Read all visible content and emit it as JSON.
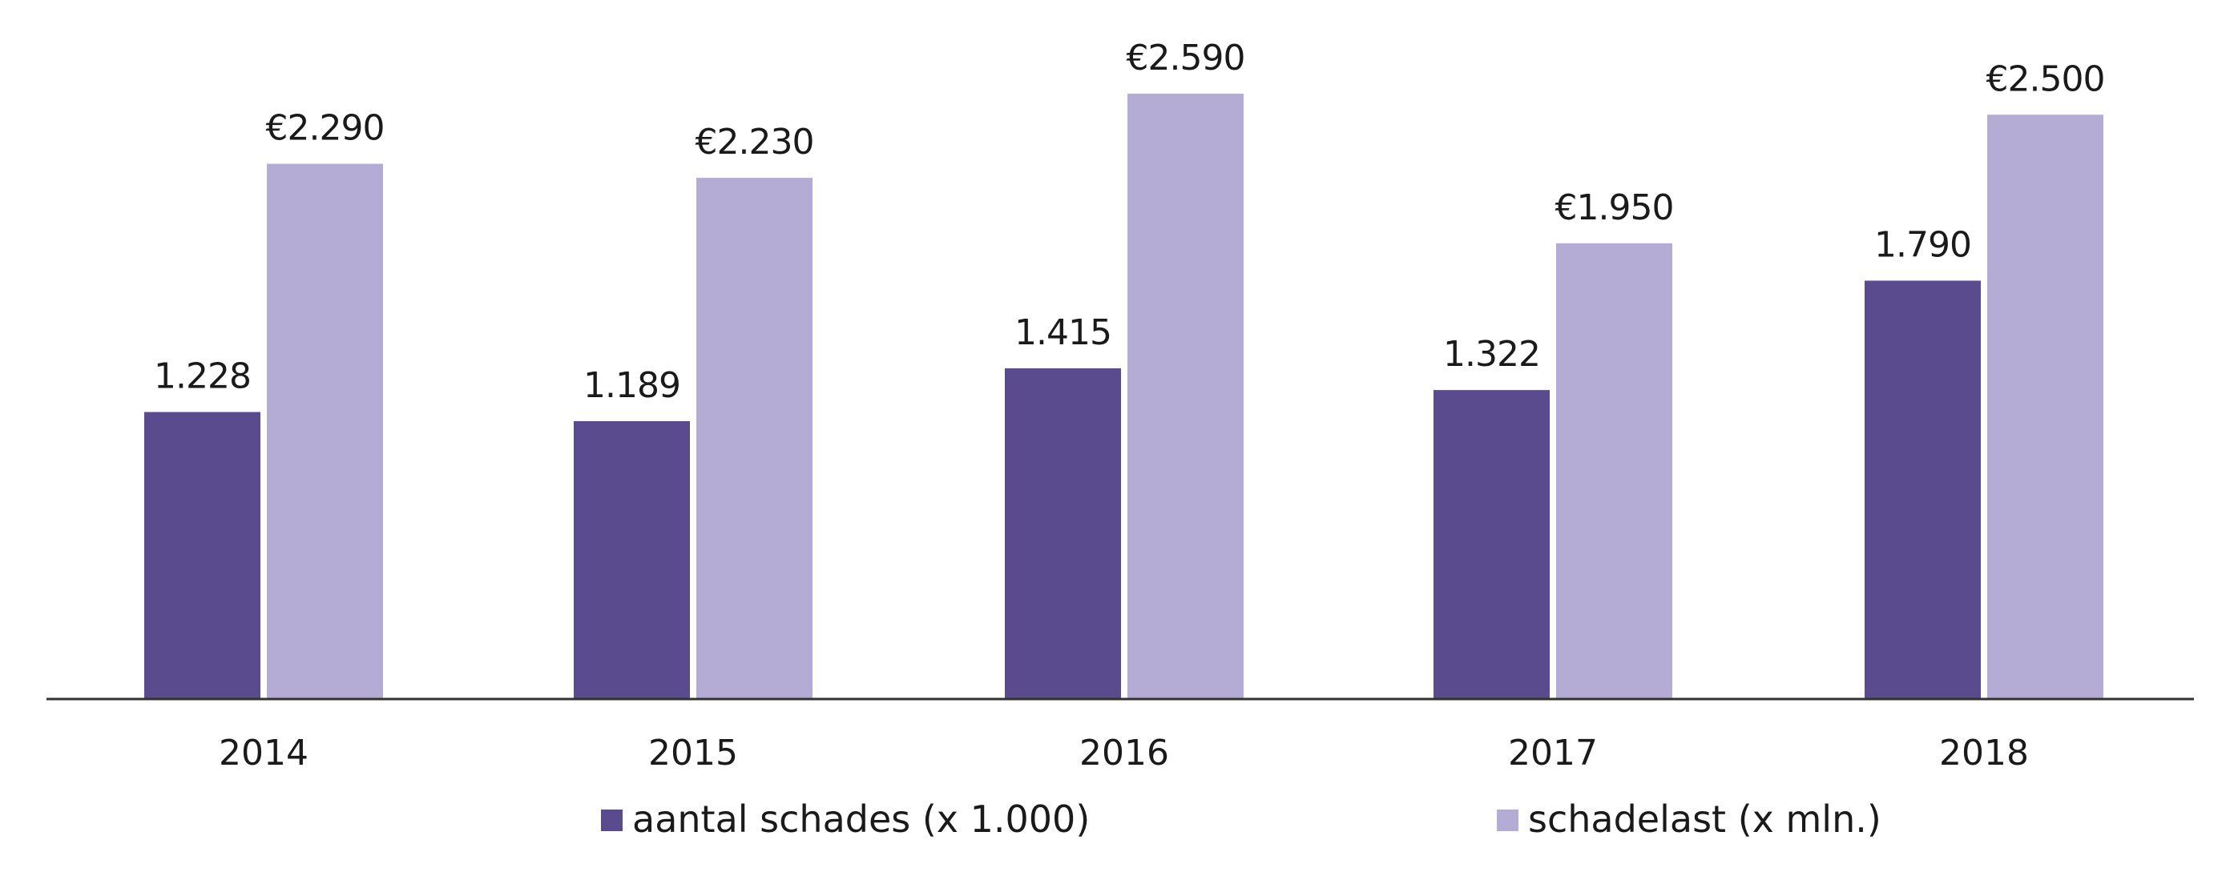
{
  "chart_data": {
    "type": "bar",
    "categories": [
      "2014",
      "2015",
      "2016",
      "2017",
      "2018"
    ],
    "series": [
      {
        "name": "aantal schades (x 1.000)",
        "values": [
          1228,
          1189,
          1415,
          1322,
          1790
        ],
        "labels": [
          "1.228",
          "1.189",
          "1.415",
          "1.322",
          "1.790"
        ],
        "color": "#5a4a8e"
      },
      {
        "name": "schadelast (x mln.)",
        "values": [
          2290,
          2230,
          2590,
          1950,
          2500
        ],
        "labels": [
          "€2.290",
          "€2.230",
          "€2.590",
          "€1.950",
          "€2.500"
        ],
        "color": "#b4acd4"
      }
    ],
    "ylim": [
      0,
      2590
    ],
    "grid": false,
    "legend_position": "bottom",
    "axis_line_color": "#333333"
  }
}
